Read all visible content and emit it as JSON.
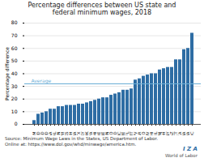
{
  "chart_data": {
    "type": "bar",
    "title": "Percentage differences between US state and\nfederal minimum wages, 2018",
    "ylabel": "Percentage difference",
    "categories": [
      "NM",
      "ID",
      "SD",
      "ND",
      "GA",
      "AL",
      "IN",
      "WI",
      "KS",
      "NH",
      "IA",
      "TX",
      "KY",
      "OK",
      "PA",
      "MI",
      "DE",
      "NE",
      "MN",
      "CO",
      "MD",
      "NC",
      "ME",
      "FL",
      "MT",
      "WV",
      "AR",
      "MO",
      "NV",
      "HI",
      "IL",
      "NJ",
      "OH",
      "NY",
      "AZ",
      "CT",
      "CA",
      "MA",
      "WA",
      "DC"
    ],
    "values": [
      3,
      8,
      9,
      10,
      12,
      12,
      14,
      14,
      15,
      15,
      15,
      16,
      16,
      17,
      18,
      19,
      20,
      21,
      21,
      23,
      24,
      25,
      27,
      27,
      28,
      35,
      36,
      38,
      39,
      40,
      40,
      43,
      44,
      45,
      45,
      51,
      51,
      59,
      60,
      72
    ],
    "color": "#2e6da4",
    "ylim": [
      0,
      80
    ],
    "yticks": [
      0,
      10,
      20,
      30,
      40,
      50,
      60,
      70,
      80
    ],
    "grid": true,
    "reference_lines": [
      {
        "value": 32,
        "label": "Average",
        "color": "#6baed6"
      }
    ],
    "source": "Source: Minimum Wage Laws in the States, US Department of Labor.\nOnline at: https://www.dol.gov/whd/minwage/america.htm.",
    "annotations": [
      {
        "text": "I Z A",
        "color": "#2e6da4"
      },
      {
        "text": "World of Labor"
      }
    ]
  }
}
